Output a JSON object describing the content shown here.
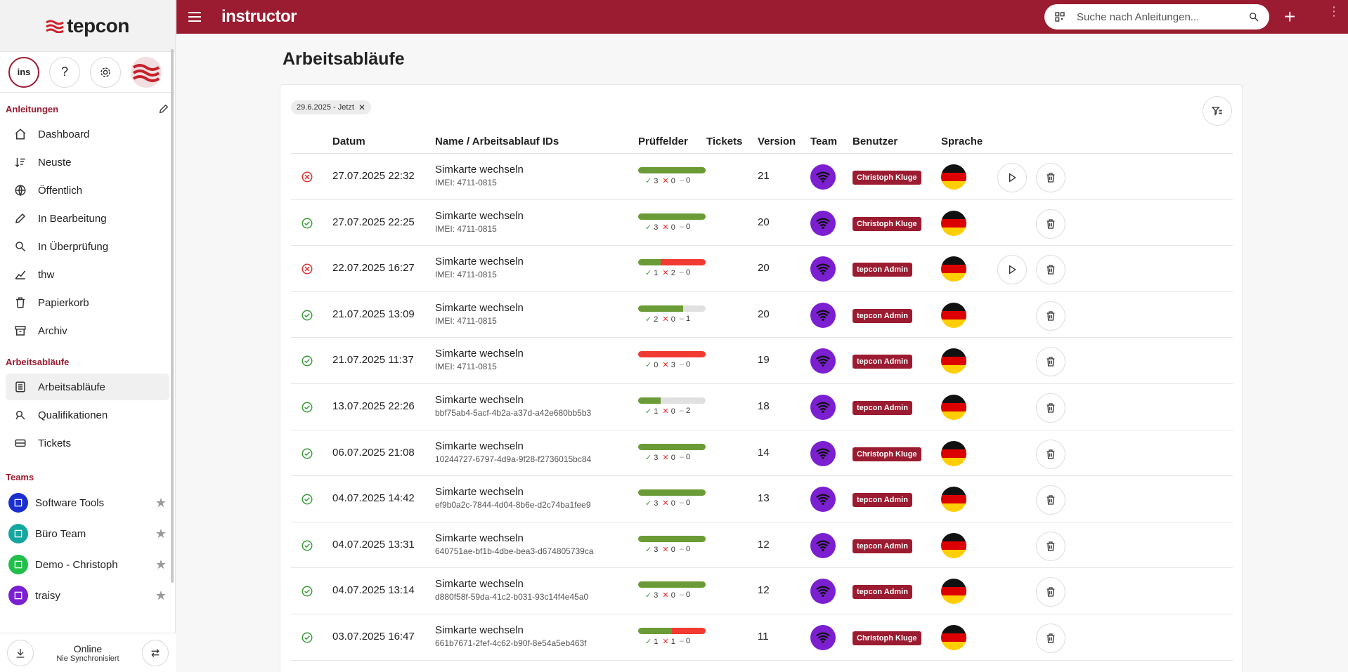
{
  "app": {
    "logo_text": "tepcon",
    "brand": "instructor"
  },
  "search": {
    "placeholder": "Suche nach Anleitungen..."
  },
  "sidebar": {
    "section_guides": "Anleitungen",
    "items": [
      {
        "label": "Dashboard",
        "icon": "home-icon"
      },
      {
        "label": "Neuste",
        "icon": "sort-icon"
      },
      {
        "label": "Öffentlich",
        "icon": "globe-icon"
      },
      {
        "label": "In Bearbeitung",
        "icon": "pencil-icon"
      },
      {
        "label": "In Überprüfung",
        "icon": "search-icon"
      },
      {
        "label": "thw",
        "icon": "chart-icon"
      },
      {
        "label": "Papierkorb",
        "icon": "trash-icon"
      },
      {
        "label": "Archiv",
        "icon": "archive-icon"
      }
    ],
    "section_workflows": "Arbeitsabläufe",
    "workflow_items": [
      {
        "label": "Arbeitsabläufe",
        "icon": "list-icon",
        "active": true
      },
      {
        "label": "Qualifikationen",
        "icon": "badge-icon"
      },
      {
        "label": "Tickets",
        "icon": "ticket-icon"
      }
    ],
    "section_teams": "Teams",
    "teams": [
      {
        "label": "Software Tools",
        "color": "#1a2fd0"
      },
      {
        "label": "Büro Team",
        "color": "#14a6a0"
      },
      {
        "label": "Demo - Christoph",
        "color": "#1fbf4a"
      },
      {
        "label": "traisy",
        "color": "#7b1fd1"
      }
    ],
    "footer": {
      "status": "Online",
      "sync": "Nie Synchronisiert"
    }
  },
  "main": {
    "title": "Arbeitsabläufe",
    "filter_chip": "29.6.2025 - Jetzt",
    "columns": {
      "datum": "Datum",
      "name": "Name / Arbeitsablauf IDs",
      "pruef": "Prüffelder",
      "tickets": "Tickets",
      "version": "Version",
      "team": "Team",
      "benutzer": "Benutzer",
      "sprache": "Sprache"
    },
    "rows": [
      {
        "status": "failed",
        "date": "27.07.2025 22:32",
        "name": "Simkarte wechseln",
        "id": "IMEI: 4711-0815",
        "ok": 3,
        "fail": 0,
        "open": 0,
        "version": "21",
        "user": "Christoph Kluge",
        "play": true
      },
      {
        "status": "done",
        "date": "27.07.2025 22:25",
        "name": "Simkarte wechseln",
        "id": "IMEI: 4711-0815",
        "ok": 3,
        "fail": 0,
        "open": 0,
        "version": "20",
        "user": "Christoph Kluge",
        "play": false
      },
      {
        "status": "failed",
        "date": "22.07.2025 16:27",
        "name": "Simkarte wechseln",
        "id": "IMEI: 4711-0815",
        "ok": 1,
        "fail": 2,
        "open": 0,
        "version": "20",
        "user": "tepcon Admin",
        "play": true
      },
      {
        "status": "done",
        "date": "21.07.2025 13:09",
        "name": "Simkarte wechseln",
        "id": "IMEI: 4711-0815",
        "ok": 2,
        "fail": 0,
        "open": 1,
        "version": "20",
        "user": "tepcon Admin",
        "play": false
      },
      {
        "status": "done",
        "date": "21.07.2025 11:37",
        "name": "Simkarte wechseln",
        "id": "IMEI: 4711-0815",
        "ok": 0,
        "fail": 3,
        "open": 0,
        "version": "19",
        "user": "tepcon Admin",
        "play": false
      },
      {
        "status": "done",
        "date": "13.07.2025 22:26",
        "name": "Simkarte wechseln",
        "id": "bbf75ab4-5acf-4b2a-a37d-a42e680bb5b3",
        "ok": 1,
        "fail": 0,
        "open": 2,
        "version": "18",
        "user": "tepcon Admin",
        "play": false
      },
      {
        "status": "done",
        "date": "06.07.2025 21:08",
        "name": "Simkarte wechseln",
        "id": "10244727-6797-4d9a-9f28-f2736015bc84",
        "ok": 3,
        "fail": 0,
        "open": 0,
        "version": "14",
        "user": "Christoph Kluge",
        "play": false
      },
      {
        "status": "done",
        "date": "04.07.2025 14:42",
        "name": "Simkarte wechseln",
        "id": "ef9b0a2c-7844-4d04-8b6e-d2c74ba1fee9",
        "ok": 3,
        "fail": 0,
        "open": 0,
        "version": "13",
        "user": "tepcon Admin",
        "play": false
      },
      {
        "status": "done",
        "date": "04.07.2025 13:31",
        "name": "Simkarte wechseln",
        "id": "640751ae-bf1b-4dbe-bea3-d674805739ca",
        "ok": 3,
        "fail": 0,
        "open": 0,
        "version": "12",
        "user": "tepcon Admin",
        "play": false
      },
      {
        "status": "done",
        "date": "04.07.2025 13:14",
        "name": "Simkarte wechseln",
        "id": "d880f58f-59da-41c2-b031-93c14f4e45a0",
        "ok": 3,
        "fail": 0,
        "open": 0,
        "version": "12",
        "user": "tepcon Admin",
        "play": false
      },
      {
        "status": "done",
        "date": "03.07.2025 16:47",
        "name": "Simkarte wechseln",
        "id": "661b7671-2fef-4c62-b90f-8e54a5eb463f",
        "ok": 1,
        "fail": 1,
        "open": 0,
        "version": "11",
        "user": "Christoph Kluge",
        "play": false
      }
    ]
  }
}
